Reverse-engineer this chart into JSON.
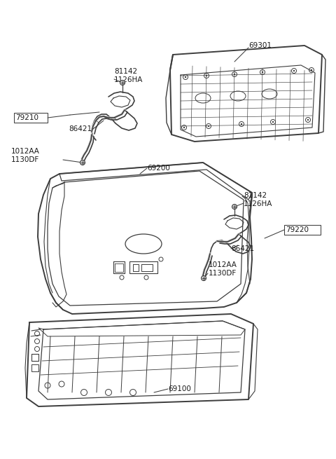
{
  "bg_color": "#ffffff",
  "line_color": "#3d3d3d",
  "text_color": "#1a1a1a",
  "figsize": [
    4.8,
    6.55
  ],
  "dpi": 100,
  "label_fontsize": 7.5,
  "parts": {
    "left_hinge_bolt_label": "81142\n1126HA",
    "left_hinge_bracket_label": "79210",
    "left_hinge_spring_label": "86421",
    "left_hinge_bolt2_label": "1012AA\n1130DF",
    "trunk_lid_label": "69200",
    "shelf_label": "69301",
    "right_hinge_bolt_label": "81142\n1126HA",
    "right_hinge_bracket_label": "79220",
    "right_hinge_spring_label": "86421",
    "right_hinge_bolt2_label": "1012AA\n1130DF",
    "rear_panel_label": "69100"
  }
}
